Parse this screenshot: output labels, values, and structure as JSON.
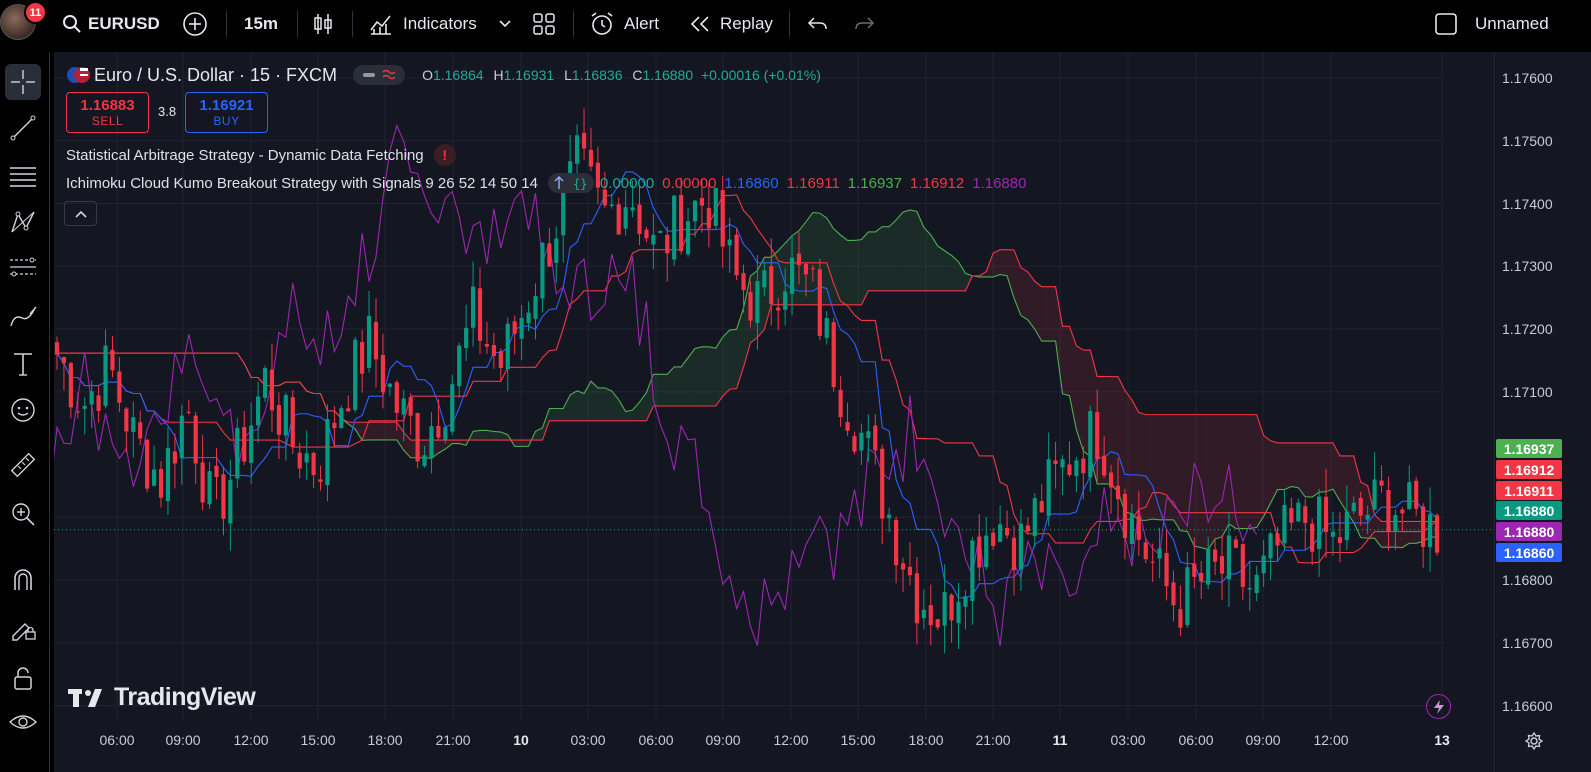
{
  "user": {
    "notifications": "11"
  },
  "toolbar": {
    "symbol": "EURUSD",
    "interval": "15m",
    "indicators_label": "Indicators",
    "alert_label": "Alert",
    "replay_label": "Replay",
    "layout_name": "Unnamed"
  },
  "left_tools": [
    "crosshair-icon",
    "trend-line-icon",
    "horizontal-lines-icon",
    "pattern-icon",
    "fib-icon",
    "brush-icon",
    "text-icon",
    "emoji-icon",
    "ruler-icon",
    "zoom-in-icon",
    "magnet-icon",
    "lock-pencil-icon",
    "lock-icon",
    "eye-icon",
    "trash-icon"
  ],
  "legend": {
    "symbol_title": "Euro / U.S. Dollar · 15 · FXCM",
    "ohlc": {
      "o_label": "O",
      "o": "1.16864",
      "h_label": "H",
      "h": "1.16931",
      "l_label": "L",
      "l": "1.16836",
      "c_label": "C",
      "c": "1.16880",
      "change": "+0.00016 (+0.01%)"
    },
    "sell_price": "1.16883",
    "sell_label": "SELL",
    "spread": "3.8",
    "buy_price": "1.16921",
    "buy_label": "BUY",
    "indicator1": "Statistical Arbitrage Strategy - Dynamic Data Fetching",
    "indicator1_warning": "!",
    "indicator2": "Ichimoku Cloud Kumo Breakout Strategy with Signals 9 26 52 14 50 14",
    "indicator2_values": [
      {
        "v": "0.00000",
        "color": "#22ab94"
      },
      {
        "v": "0.00000",
        "color": "#f23645"
      },
      {
        "v": "1.16860",
        "color": "#2962ff"
      },
      {
        "v": "1.16911",
        "color": "#f23645"
      },
      {
        "v": "1.16937",
        "color": "#4caf50"
      },
      {
        "v": "1.16912",
        "color": "#f23645"
      },
      {
        "v": "1.16880",
        "color": "#9c27b0"
      }
    ]
  },
  "price_axis": {
    "ticks": [
      "1.17600",
      "1.17500",
      "1.17400",
      "1.17300",
      "1.17200",
      "1.17100",
      "1.16800",
      "1.16700",
      "1.16600"
    ],
    "badges": [
      {
        "label": "1.16937",
        "color": "#4caf50"
      },
      {
        "label": "1.16912",
        "color": "#f23645"
      },
      {
        "label": "1.16911",
        "color": "#f23645"
      },
      {
        "label": "1.16880",
        "color": "#089981"
      },
      {
        "label": "1.16880",
        "color": "#9c27b0"
      },
      {
        "label": "1.16860",
        "color": "#2962ff"
      }
    ]
  },
  "time_axis": {
    "ticks": [
      {
        "label": "06:00",
        "bold": false
      },
      {
        "label": "09:00",
        "bold": false
      },
      {
        "label": "12:00",
        "bold": false
      },
      {
        "label": "15:00",
        "bold": false
      },
      {
        "label": "18:00",
        "bold": false
      },
      {
        "label": "21:00",
        "bold": false
      },
      {
        "label": "10",
        "bold": true
      },
      {
        "label": "03:00",
        "bold": false
      },
      {
        "label": "06:00",
        "bold": false
      },
      {
        "label": "09:00",
        "bold": false
      },
      {
        "label": "12:00",
        "bold": false
      },
      {
        "label": "15:00",
        "bold": false
      },
      {
        "label": "18:00",
        "bold": false
      },
      {
        "label": "21:00",
        "bold": false
      },
      {
        "label": "11",
        "bold": true
      },
      {
        "label": "03:00",
        "bold": false
      },
      {
        "label": "06:00",
        "bold": false
      },
      {
        "label": "09:00",
        "bold": false
      },
      {
        "label": "12:00",
        "bold": false
      },
      {
        "label": "13",
        "bold": true
      }
    ]
  },
  "watermark": "TradingView",
  "colors": {
    "up": "#089981",
    "down": "#f23645",
    "tenkan": "#2962ff",
    "kijun": "#f23645",
    "span_a": "#4caf50",
    "span_b": "#f23645",
    "lagging": "#9c27b0"
  },
  "chart_data": {
    "type": "candlestick",
    "symbol": "EURUSD",
    "ylim": [
      1.1658,
      1.1764
    ],
    "price_path": [
      1.1716,
      1.1708,
      1.1714,
      1.1702,
      1.1696,
      1.1708,
      1.169,
      1.17,
      1.1712,
      1.1702,
      1.1698,
      1.171,
      1.1718,
      1.1708,
      1.1702,
      1.171,
      1.1722,
      1.1714,
      1.1724,
      1.1735,
      1.1746,
      1.1738,
      1.1742,
      1.1732,
      1.1738,
      1.1741,
      1.1728,
      1.1724,
      1.173,
      1.1726,
      1.1712,
      1.1702,
      1.169,
      1.1678,
      1.1674,
      1.1684,
      1.169,
      1.1686,
      1.1694,
      1.17,
      1.1704,
      1.1692,
      1.1683,
      1.1676,
      1.168,
      1.1682,
      1.1678,
      1.1686,
      1.169,
      1.1686,
      1.169,
      1.1693,
      1.169,
      1.1688
    ],
    "cloud_segments": [
      "bullish",
      "bearish",
      "bullish",
      "bearish",
      "bullish"
    ]
  }
}
